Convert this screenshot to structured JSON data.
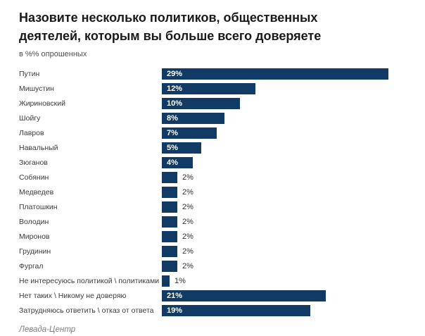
{
  "header": {
    "title": "Назовите несколько политиков, общественных деятелей, которым вы больше всего доверяете",
    "subtitle": "в %% опрошенных"
  },
  "chart_data": {
    "type": "bar",
    "orientation": "horizontal",
    "unit": "%",
    "categories": [
      "Путин",
      "Мишустин",
      "Жириновский",
      "Шойгу",
      "Лавров",
      "Навальный",
      "Зюганов",
      "Собянин",
      "Медведев",
      "Платошкин",
      "Володин",
      "Миронов",
      "Грудинин",
      "Фургал",
      "Не интересуюсь политикой \\ политиками",
      "Нет таких \\ Никому не доверяю",
      "Затрудняюсь ответить \\ отказ от ответа"
    ],
    "values": [
      29,
      12,
      10,
      8,
      7,
      5,
      4,
      2,
      2,
      2,
      2,
      2,
      2,
      2,
      1,
      21,
      19
    ],
    "value_labels": [
      "29%",
      "12%",
      "10%",
      "8%",
      "7%",
      "5%",
      "4%",
      "2%",
      "2%",
      "2%",
      "2%",
      "2%",
      "2%",
      "2%",
      "1%",
      "21%",
      "19%"
    ],
    "xlim": [
      0,
      29
    ],
    "bar_color": "#113a64",
    "value_label_color_inside": "#ffffff",
    "value_label_color_outside": "#333333",
    "inside_label_threshold": 4,
    "legend": "none",
    "grid": "off"
  },
  "footer": {
    "source": "Левада-Центр"
  }
}
